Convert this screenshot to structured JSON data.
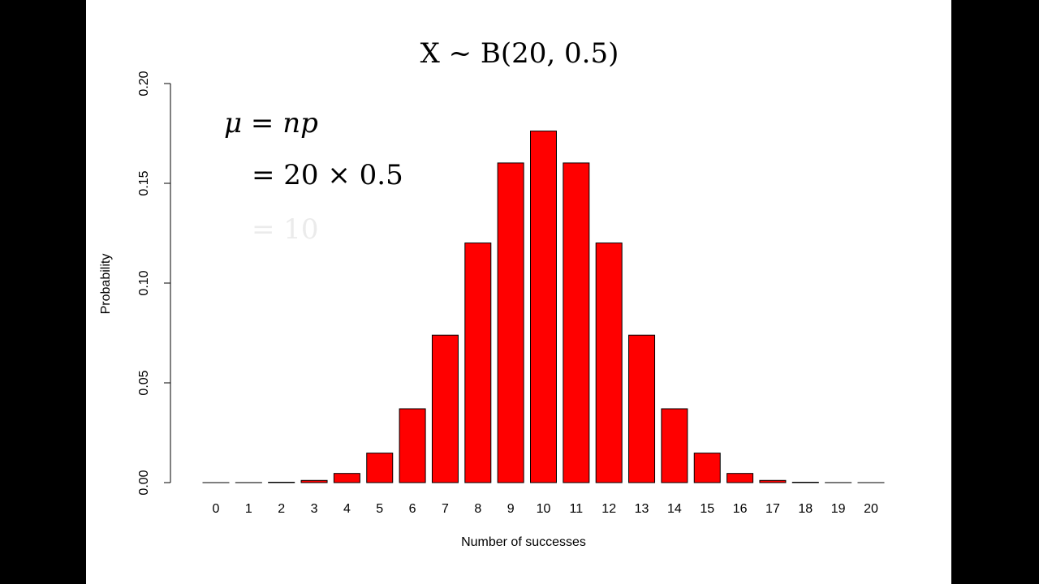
{
  "chart_data": {
    "type": "bar",
    "title": "X ~ B(20, 0.5)",
    "annotations": [
      "μ = np",
      "= 20 × 0.5",
      "= 10"
    ],
    "x_label": "Number of successes",
    "y_label": "Probability",
    "categories": [
      "0",
      "1",
      "2",
      "3",
      "4",
      "5",
      "6",
      "7",
      "8",
      "9",
      "10",
      "11",
      "12",
      "13",
      "14",
      "15",
      "16",
      "17",
      "18",
      "19",
      "20"
    ],
    "values": [
      1e-06,
      1.9e-05,
      0.0002,
      0.0011,
      0.0046,
      0.0148,
      0.037,
      0.0739,
      0.1201,
      0.1602,
      0.1762,
      0.1602,
      0.1201,
      0.0739,
      0.037,
      0.0148,
      0.0046,
      0.0011,
      0.0002,
      1.9e-05,
      1e-06
    ],
    "color": "#ff0000",
    "ylim": [
      0,
      0.2
    ],
    "yticks": [
      {
        "value": 0,
        "label": "0.00"
      },
      0.05,
      {
        "value": 0.1,
        "label": "0.10"
      },
      0.15,
      {
        "value": 0.2,
        "label": "0.20"
      }
    ]
  }
}
